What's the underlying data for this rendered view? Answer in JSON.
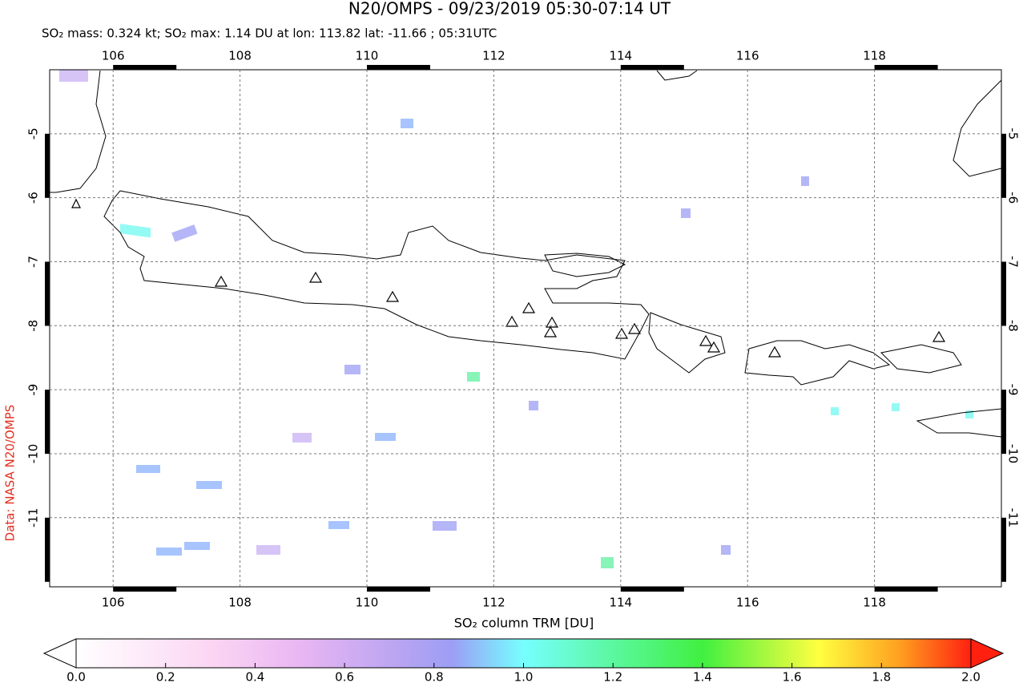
{
  "chart_data": {
    "type": "map",
    "title": "N20/OMPS - 09/23/2019 05:30-07:14 UT",
    "subtitle": "SO₂ mass: 0.324 kt; SO₂ max: 1.14 DU at lon: 113.82 lat: -11.66 ; 05:31UTC",
    "side_label": "Data: NASA N20/OMPS",
    "colorbar_label": "SO₂ column TRM [DU]",
    "xlim": [
      105,
      120
    ],
    "xticks": [
      106,
      108,
      110,
      112,
      114,
      116,
      118
    ],
    "ylim": [
      -12.08,
      -4
    ],
    "yticks": [
      -5,
      -6,
      -7,
      -8,
      -9,
      -10,
      -11
    ],
    "grid": true,
    "clim": [
      0,
      2
    ],
    "cticks": [
      {
        "value": 0,
        "label": "0.0"
      },
      0.2,
      0.4,
      0.6,
      0.8,
      {
        "value": 1,
        "label": "1.0"
      },
      1.2,
      1.4,
      1.6,
      1.8,
      {
        "value": 2,
        "label": "2.0"
      }
    ]
  }
}
